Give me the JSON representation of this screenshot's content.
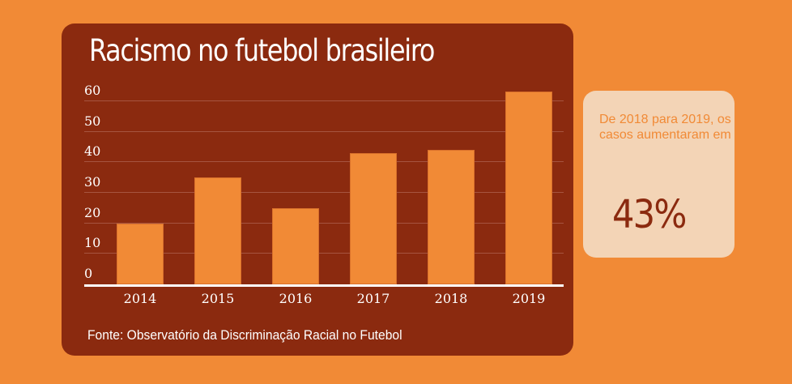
{
  "chart_data": {
    "type": "bar",
    "title": "Racismo no futebol brasileiro",
    "categories": [
      "2014",
      "2015",
      "2016",
      "2017",
      "2018",
      "2019"
    ],
    "values": [
      20,
      35,
      25,
      43,
      44,
      63
    ],
    "xlabel": "",
    "ylabel": "",
    "ylim": [
      0,
      60
    ],
    "yticks": [
      "0",
      "10",
      "20",
      "30",
      "40",
      "50",
      "60"
    ],
    "grid": true,
    "legend": "none",
    "source": "Fonte: Observatório da Discriminação Racial no Futebol",
    "colors": {
      "bar": "#F18A36",
      "panel": "#8B2A0F",
      "background": "#F18A36"
    }
  },
  "callout": {
    "text": "De 2018 para 2019, os casos aumentaram em",
    "value": "43%"
  }
}
